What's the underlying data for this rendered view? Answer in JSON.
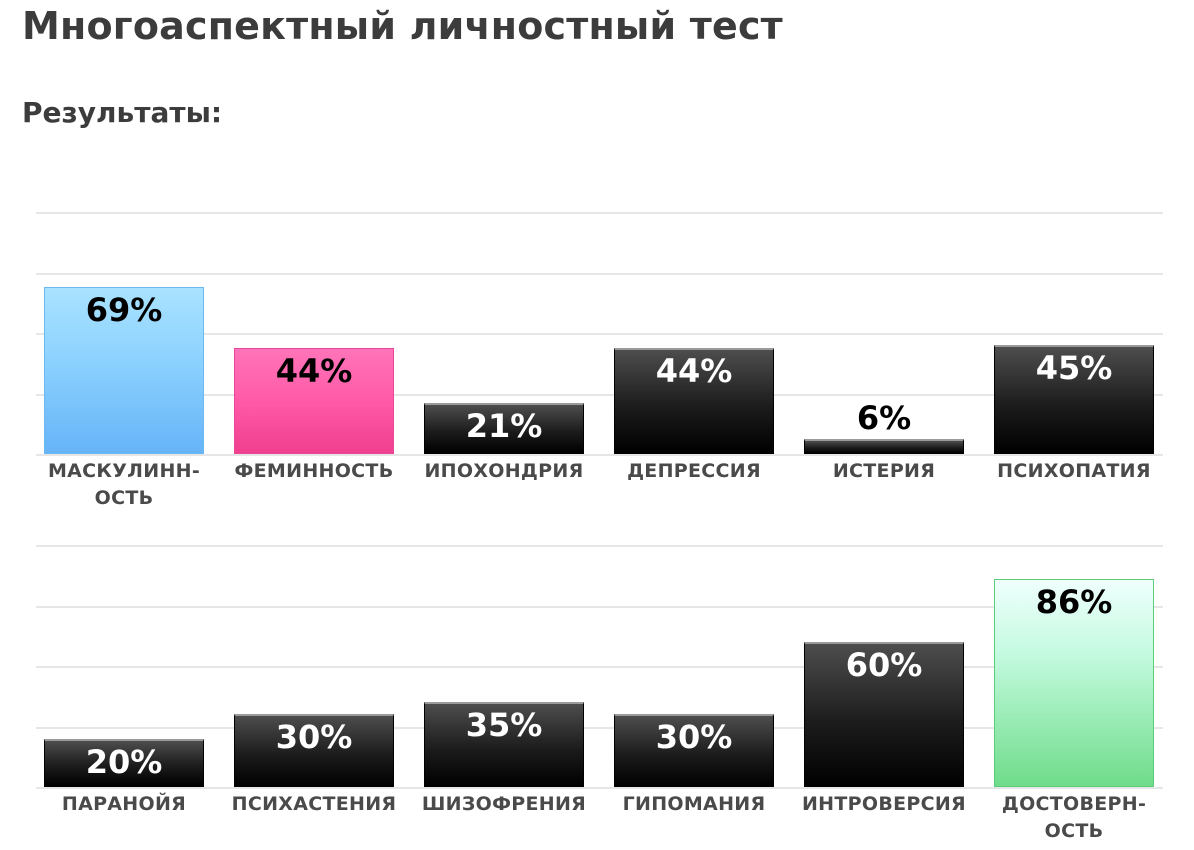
{
  "page": {
    "title": "Многоаспектный личностный тест",
    "results_heading": "Результаты:"
  },
  "chart_data": [
    {
      "type": "bar",
      "ylim": [
        0,
        100
      ],
      "grid": true,
      "categories": [
        "МАСКУЛИНН-\nОСТЬ",
        "ФЕМИННОСТЬ",
        "ИПОХОНДРИЯ",
        "ДЕПРЕССИЯ",
        "ИСТЕРИЯ",
        "ПСИХОПАТИЯ"
      ],
      "values": [
        69,
        44,
        21,
        44,
        6,
        45
      ],
      "value_labels": [
        "69%",
        "44%",
        "21%",
        "44%",
        "6%",
        "45%"
      ],
      "bar_styles": [
        "blue",
        "pink",
        "dark",
        "dark",
        "dark",
        "dark"
      ]
    },
    {
      "type": "bar",
      "ylim": [
        0,
        100
      ],
      "grid": true,
      "categories": [
        "ПАРАНОЙЯ",
        "ПСИХАСТЕНИЯ",
        "ШИЗОФРЕНИЯ",
        "ГИПОМАНИЯ",
        "ИНТРОВЕРСИЯ",
        "ДОСТОВЕРН-\nОСТЬ"
      ],
      "values": [
        20,
        30,
        35,
        30,
        60,
        86
      ],
      "value_labels": [
        "20%",
        "30%",
        "35%",
        "30%",
        "60%",
        "86%"
      ],
      "bar_styles": [
        "dark",
        "dark",
        "dark",
        "dark",
        "dark",
        "green"
      ]
    }
  ]
}
